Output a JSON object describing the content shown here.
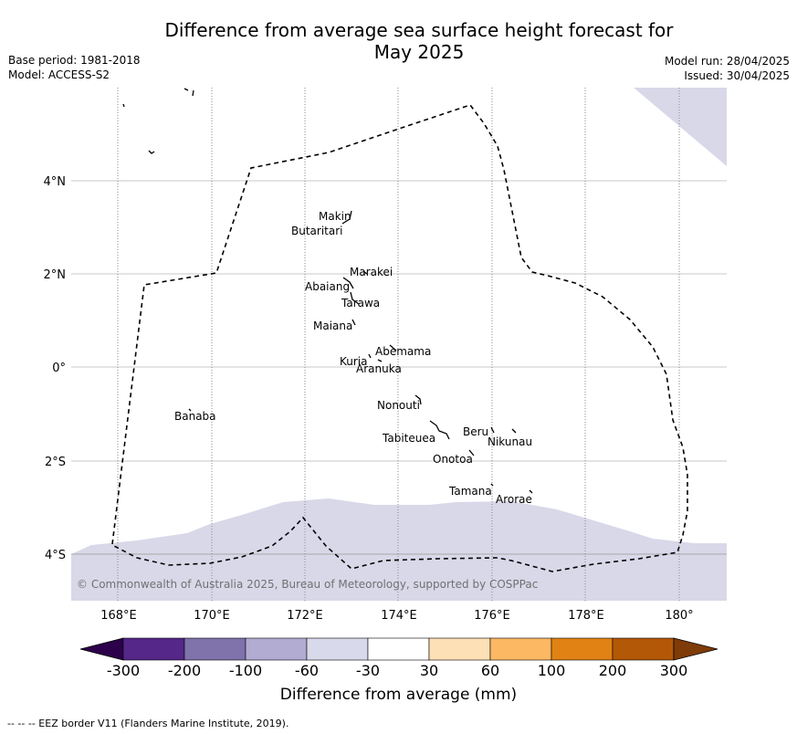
{
  "header": {
    "title_line1": "Difference from average sea surface height forecast for",
    "title_line2": "May 2025",
    "base_period": "Base period: 1981-2018",
    "model": "Model: ACCESS-S2",
    "model_run": "Model run: 28/04/2025",
    "issued": "Issued: 30/04/2025"
  },
  "map": {
    "lat_labels": [
      "4°N",
      "2°N",
      "0°",
      "2°S",
      "4°S"
    ],
    "lon_labels": [
      "168°E",
      "170°E",
      "172°E",
      "174°E",
      "176°E",
      "178°E",
      "180°"
    ],
    "copyright": "© Commonwealth of Australia 2025, Bureau of Meteorology, supported by COSPPac",
    "places": [
      {
        "name": "Makin"
      },
      {
        "name": "Butaritari"
      },
      {
        "name": "Marakei"
      },
      {
        "name": "Abaiang"
      },
      {
        "name": "Tarawa"
      },
      {
        "name": "Maiana"
      },
      {
        "name": "Abemama"
      },
      {
        "name": "Kuria"
      },
      {
        "name": "Aranuka"
      },
      {
        "name": "Banaba"
      },
      {
        "name": "Nonouti"
      },
      {
        "name": "Tabiteuea"
      },
      {
        "name": "Beru"
      },
      {
        "name": "Nikunau"
      },
      {
        "name": "Onotoa"
      },
      {
        "name": "Tamana"
      },
      {
        "name": "Arorae"
      }
    ],
    "colors": {
      "land_outline": "#000000",
      "grid": "#c8c8c8",
      "anomaly_fill": "#d8d8e9"
    }
  },
  "colorbar": {
    "title": "Difference from average (mm)",
    "ticks": [
      "-300",
      "-200",
      "-100",
      "-60",
      "-30",
      "30",
      "60",
      "100",
      "200",
      "300"
    ],
    "colors": [
      "#2d004b",
      "#542788",
      "#8073ac",
      "#b2abd2",
      "#d8daeb",
      "#ffffff",
      "#fee0b6",
      "#fdb863",
      "#e08214",
      "#b35806",
      "#7f3b08"
    ]
  },
  "footer": {
    "legend_text": "--  --  -- EEZ border V11 (Flanders Marine Institute, 2019)."
  }
}
